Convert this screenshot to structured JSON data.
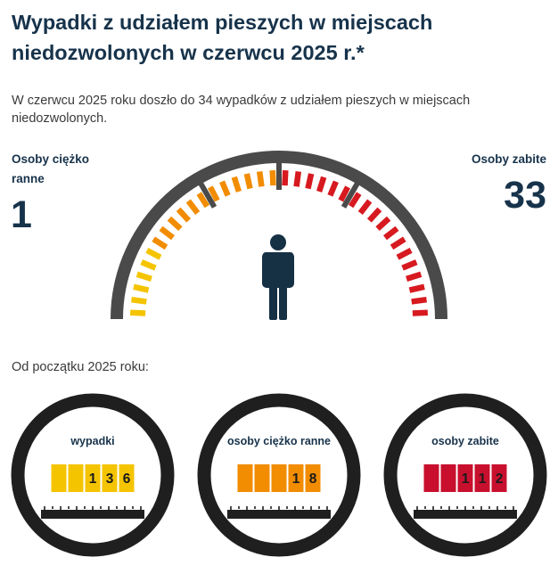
{
  "header": {
    "title": "Wypadki z udziałem pieszych w miejscach niedozwolonych w czerwcu 2025 r.*",
    "intro": "W czerwcu 2025 roku doszło do 34 wypadków z udziałem pieszych w miejscach niedozwolonych."
  },
  "stats": {
    "injured": {
      "label": "Osoby ciężko ranne",
      "value": "1"
    },
    "killed": {
      "label": "Osoby zabite",
      "value": "33"
    }
  },
  "gauge": {
    "icon": "pedestrian-icon",
    "colors": {
      "low": "#f5c400",
      "mid": "#f28c00",
      "high": "#d71920",
      "frame": "#4a4a4a",
      "figure": "#163044"
    }
  },
  "since_label": "Od początku 2025 roku:",
  "counters": [
    {
      "id": "accidents",
      "label": "wypadki",
      "digits": [
        "",
        "",
        "1",
        "3",
        "6"
      ],
      "color": "#f5c400"
    },
    {
      "id": "injured",
      "label": "osoby ciężko ranne",
      "digits": [
        "",
        "",
        "",
        "1",
        "8"
      ],
      "color": "#f28c00"
    },
    {
      "id": "killed",
      "label": "osoby zabite",
      "digits": [
        "",
        "",
        "1",
        "1",
        "2"
      ],
      "color": "#c8102e"
    }
  ]
}
